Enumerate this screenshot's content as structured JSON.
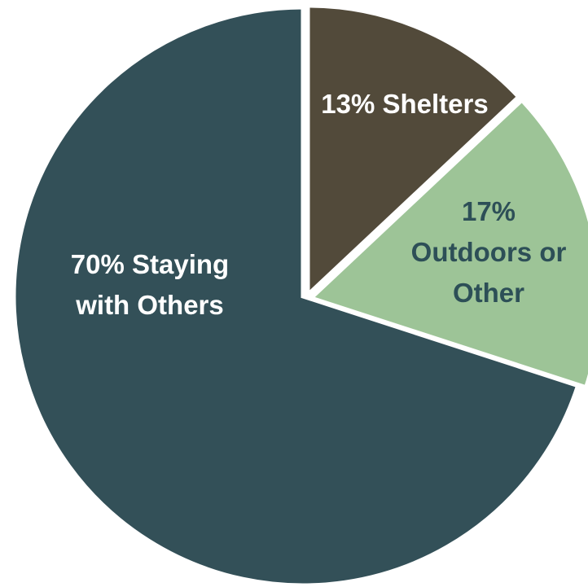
{
  "chart_data": {
    "type": "pie",
    "slices": [
      {
        "label_lines": [
          "13% Shelters"
        ],
        "value": 13,
        "color": "#524a3a",
        "text_color": "#ffffff"
      },
      {
        "label_lines": [
          "17%",
          "Outdoors or",
          "Other"
        ],
        "value": 17,
        "color": "#9dc497",
        "text_color": "#2d4f57"
      },
      {
        "label_lines": [
          "70%  Staying",
          "with Others"
        ],
        "value": 70,
        "color": "#335058",
        "text_color": "#ffffff"
      }
    ],
    "start_angle_deg": 0,
    "direction": "clockwise",
    "separator_color": "#ffffff"
  }
}
